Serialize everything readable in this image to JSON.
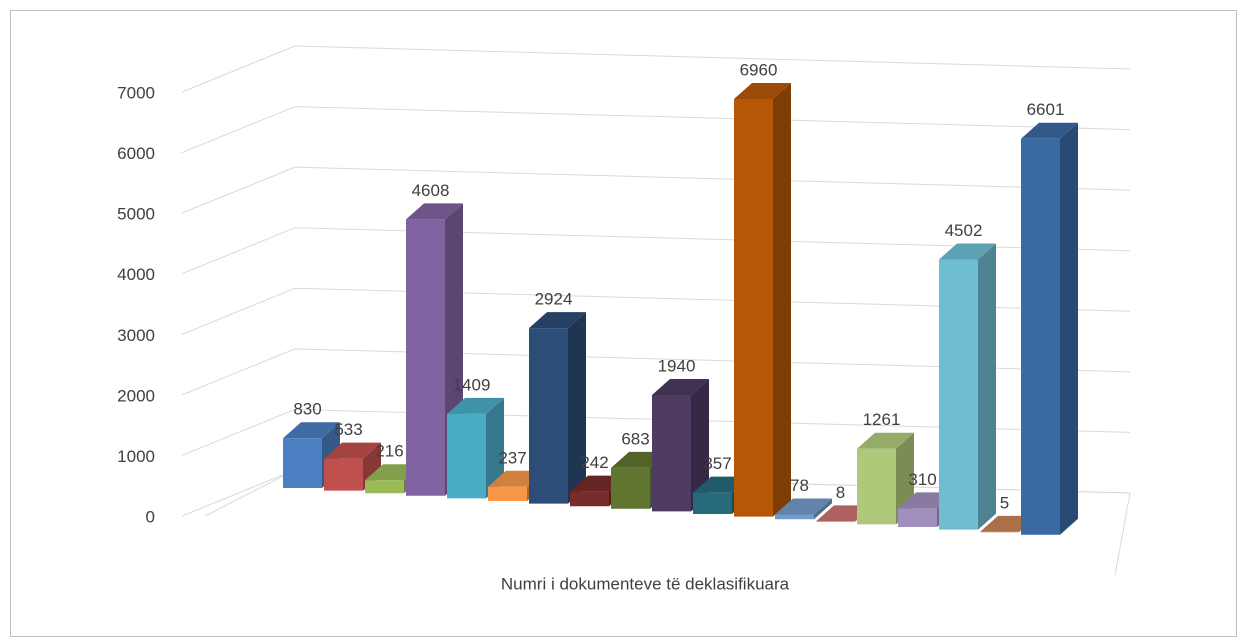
{
  "chart_data": {
    "type": "bar3d",
    "xlabel": "Numri i dokumenteve të deklasifikuara",
    "values": [
      830,
      533,
      216,
      4608,
      1409,
      237,
      2924,
      242,
      683,
      1940,
      357,
      6960,
      78,
      8,
      1261,
      310,
      4502,
      5,
      6601
    ],
    "colors": [
      "#4a7fc1",
      "#c0504d",
      "#9bbb59",
      "#8064a2",
      "#4bacc6",
      "#f79646",
      "#2c4d75",
      "#772c2a",
      "#5f7530",
      "#4d3b62",
      "#276a7c",
      "#b65708",
      "#729aca",
      "#cd7371",
      "#afc97a",
      "#a18fbf",
      "#6fbdd1",
      "#c98454",
      "#3a6aa3"
    ],
    "ylim": [
      0,
      7000
    ],
    "yticks": [
      0,
      1000,
      2000,
      3000,
      4000,
      5000,
      6000,
      7000
    ],
    "grid": true
  }
}
